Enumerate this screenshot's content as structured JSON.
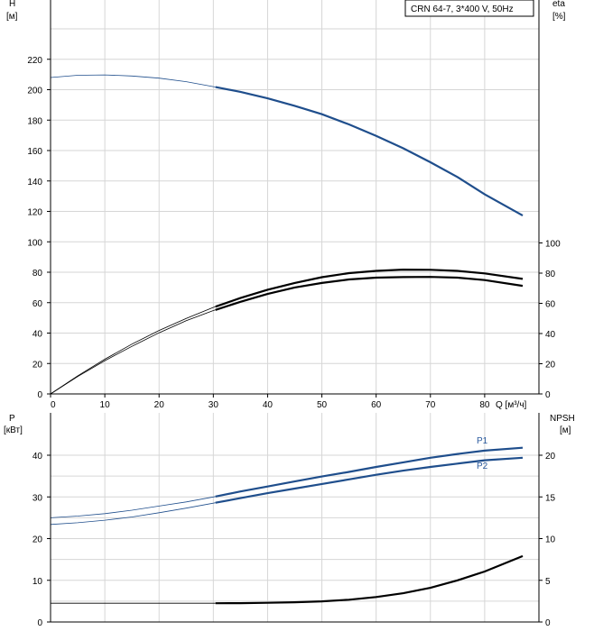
{
  "title": "CRN 64-7, 3*400 V, 50Hz",
  "chart_data": [
    {
      "type": "line",
      "name": "head-efficiency",
      "xlabel": "Q [м³/ч]",
      "ylabel_left": "H",
      "ylabel_left_unit": "[м]",
      "ylabel_right": "eta",
      "ylabel_right_unit": "[%]",
      "xlim": [
        0,
        90
      ],
      "ylim_left": [
        0,
        240
      ],
      "ylim_right_ticks": [
        0,
        20,
        40,
        60,
        80,
        100
      ],
      "x_ticks": [
        0,
        10,
        20,
        30,
        40,
        50,
        60,
        70,
        80
      ],
      "y_ticks_left": [
        0,
        20,
        40,
        60,
        80,
        100,
        120,
        140,
        160,
        180,
        200,
        220
      ],
      "grid": true,
      "series": [
        {
          "id": "head",
          "axis": "left",
          "color": "#1f4e8c",
          "points": [
            [
              0,
              208
            ],
            [
              5,
              209.5
            ],
            [
              10,
              209.7
            ],
            [
              15,
              209
            ],
            [
              20,
              207.6
            ],
            [
              25,
              205.3
            ],
            [
              30,
              202
            ],
            [
              35,
              198.6
            ],
            [
              40,
              194.3
            ],
            [
              45,
              189.4
            ],
            [
              50,
              183.9
            ],
            [
              55,
              177.2
            ],
            [
              60,
              169.6
            ],
            [
              65,
              161.5
            ],
            [
              70,
              152.3
            ],
            [
              75,
              142.6
            ],
            [
              80,
              131.2
            ],
            [
              87,
              117.3
            ]
          ],
          "op_start": 30.4
        },
        {
          "id": "eta-1",
          "axis": "right",
          "color": "#000000",
          "points": [
            [
              0,
              0
            ],
            [
              5,
              12
            ],
            [
              10,
              23
            ],
            [
              15,
              33
            ],
            [
              20,
              42
            ],
            [
              25,
              50
            ],
            [
              30,
              57.3
            ],
            [
              35,
              63.5
            ],
            [
              40,
              69
            ],
            [
              45,
              73.5
            ],
            [
              50,
              77.3
            ],
            [
              55,
              80
            ],
            [
              60,
              81.5
            ],
            [
              65,
              82.3
            ],
            [
              70,
              82.2
            ],
            [
              75,
              81.5
            ],
            [
              80,
              79.8
            ],
            [
              87,
              76.2
            ]
          ],
          "op_start": 30.4
        },
        {
          "id": "eta-2",
          "axis": "right",
          "color": "#000000",
          "points": [
            [
              0,
              0
            ],
            [
              5,
              11.5
            ],
            [
              10,
              22
            ],
            [
              15,
              31.5
            ],
            [
              20,
              40.5
            ],
            [
              25,
              48.5
            ],
            [
              30,
              55.2
            ],
            [
              35,
              61
            ],
            [
              40,
              66.2
            ],
            [
              45,
              70.5
            ],
            [
              50,
              73.5
            ],
            [
              55,
              75.8
            ],
            [
              60,
              77
            ],
            [
              65,
              77.4
            ],
            [
              70,
              77.5
            ],
            [
              75,
              77
            ],
            [
              80,
              75.4
            ],
            [
              87,
              71.6
            ]
          ],
          "op_start": 30.4
        }
      ]
    },
    {
      "type": "line",
      "name": "power-npsh",
      "ylabel_left": "P",
      "ylabel_left_unit": "[кВт]",
      "ylabel_right": "NPSH",
      "ylabel_right_unit": "[м]",
      "xlim": [
        0,
        90
      ],
      "ylim_left": [
        0,
        45
      ],
      "y_ticks_left": [
        0,
        10,
        20,
        30,
        40
      ],
      "y_ticks_right": [
        0,
        5,
        10,
        15,
        20
      ],
      "grid": true,
      "series": [
        {
          "id": "p1",
          "name": "P1",
          "axis": "left",
          "color": "#1f4e8c",
          "points": [
            [
              0,
              25
            ],
            [
              5,
              25.4
            ],
            [
              10,
              26
            ],
            [
              15,
              26.8
            ],
            [
              20,
              27.8
            ],
            [
              25,
              28.8
            ],
            [
              30,
              30
            ],
            [
              35,
              31.3
            ],
            [
              40,
              32.5
            ],
            [
              45,
              33.7
            ],
            [
              50,
              34.9
            ],
            [
              55,
              36
            ],
            [
              60,
              37.2
            ],
            [
              65,
              38.3
            ],
            [
              70,
              39.4
            ],
            [
              75,
              40.3
            ],
            [
              80,
              41.1
            ],
            [
              87,
              41.8
            ]
          ],
          "op_start": 30.4
        },
        {
          "id": "p2",
          "name": "P2",
          "axis": "left",
          "color": "#1f4e8c",
          "points": [
            [
              0,
              23.4
            ],
            [
              5,
              23.8
            ],
            [
              10,
              24.4
            ],
            [
              15,
              25.2
            ],
            [
              20,
              26.2
            ],
            [
              25,
              27.3
            ],
            [
              30,
              28.5
            ],
            [
              35,
              29.7
            ],
            [
              40,
              30.9
            ],
            [
              45,
              32
            ],
            [
              50,
              33.1
            ],
            [
              55,
              34.2
            ],
            [
              60,
              35.3
            ],
            [
              65,
              36.3
            ],
            [
              70,
              37.2
            ],
            [
              75,
              38
            ],
            [
              80,
              38.8
            ],
            [
              87,
              39.4
            ]
          ],
          "op_start": 30.4
        },
        {
          "id": "npsh",
          "axis": "right",
          "color": "#000000",
          "points": [
            [
              0,
              2.25
            ],
            [
              10,
              2.25
            ],
            [
              20,
              2.25
            ],
            [
              30.4,
              2.25
            ],
            [
              35,
              2.26
            ],
            [
              40,
              2.3
            ],
            [
              45,
              2.37
            ],
            [
              50,
              2.48
            ],
            [
              55,
              2.67
            ],
            [
              60,
              3
            ],
            [
              65,
              3.45
            ],
            [
              70,
              4.1
            ],
            [
              75,
              5
            ],
            [
              80,
              6.05
            ],
            [
              87,
              7.9
            ]
          ],
          "op_start": 30.4
        }
      ]
    }
  ]
}
